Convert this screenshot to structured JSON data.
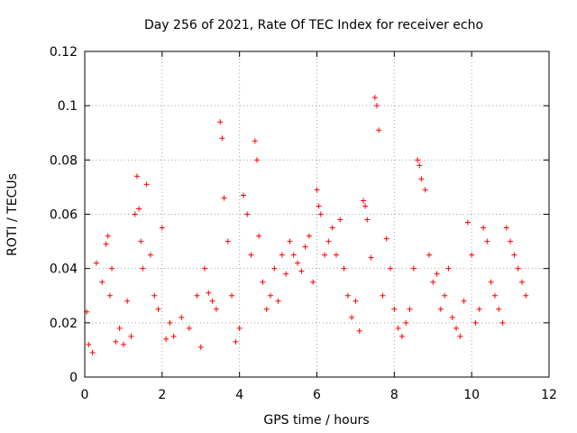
{
  "chart_data": {
    "type": "scatter",
    "title": "Day 256 of 2021, Rate Of TEC Index for receiver echo",
    "xlabel": "GPS time / hours",
    "ylabel": "ROTI / TECUs",
    "xlim": [
      0,
      12
    ],
    "ylim": [
      0,
      0.12
    ],
    "grid": true,
    "marker": "+",
    "x_ticks": [
      0,
      2,
      4,
      6,
      8,
      10,
      12
    ],
    "x_tick_labels": [
      "0",
      "2",
      "4",
      "6",
      "8",
      "10",
      "12"
    ],
    "y_ticks": [
      0,
      0.02,
      0.04,
      0.06,
      0.08,
      0.1,
      0.12
    ],
    "y_tick_labels": [
      "0",
      "0.02",
      "0.04",
      "0.06",
      "0.08",
      "0.1",
      "0.12"
    ],
    "series": [
      {
        "name": "ROTI",
        "color": "#ff0000",
        "x": [
          0.05,
          0.1,
          0.2,
          0.3,
          0.45,
          0.55,
          0.6,
          0.65,
          0.7,
          0.8,
          0.9,
          1.0,
          1.1,
          1.2,
          1.3,
          1.35,
          1.4,
          1.45,
          1.5,
          1.6,
          1.7,
          1.8,
          1.9,
          2.0,
          2.1,
          2.2,
          2.3,
          2.5,
          2.7,
          2.9,
          3.0,
          3.1,
          3.2,
          3.3,
          3.4,
          3.5,
          3.55,
          3.6,
          3.7,
          3.8,
          3.9,
          4.0,
          4.1,
          4.2,
          4.3,
          4.4,
          4.45,
          4.5,
          4.6,
          4.7,
          4.8,
          4.9,
          5.0,
          5.1,
          5.2,
          5.3,
          5.4,
          5.5,
          5.6,
          5.7,
          5.8,
          5.9,
          6.0,
          6.05,
          6.1,
          6.2,
          6.3,
          6.4,
          6.5,
          6.6,
          6.7,
          6.8,
          6.9,
          7.0,
          7.1,
          7.2,
          7.25,
          7.3,
          7.4,
          7.5,
          7.55,
          7.6,
          7.7,
          7.8,
          7.9,
          8.0,
          8.1,
          8.2,
          8.3,
          8.4,
          8.5,
          8.6,
          8.65,
          8.7,
          8.8,
          8.9,
          9.0,
          9.1,
          9.2,
          9.3,
          9.4,
          9.5,
          9.6,
          9.7,
          9.8,
          9.9,
          10.0,
          10.1,
          10.2,
          10.3,
          10.4,
          10.5,
          10.6,
          10.7,
          10.8,
          10.9,
          11.0,
          11.1,
          11.2,
          11.3,
          11.4
        ],
        "y": [
          0.024,
          0.012,
          0.009,
          0.042,
          0.035,
          0.049,
          0.052,
          0.03,
          0.04,
          0.013,
          0.018,
          0.012,
          0.028,
          0.015,
          0.06,
          0.074,
          0.062,
          0.05,
          0.04,
          0.071,
          0.045,
          0.03,
          0.025,
          0.055,
          0.014,
          0.02,
          0.015,
          0.022,
          0.018,
          0.03,
          0.011,
          0.04,
          0.031,
          0.028,
          0.025,
          0.094,
          0.088,
          0.066,
          0.05,
          0.03,
          0.013,
          0.018,
          0.067,
          0.06,
          0.045,
          0.087,
          0.08,
          0.052,
          0.035,
          0.025,
          0.03,
          0.04,
          0.028,
          0.045,
          0.038,
          0.05,
          0.045,
          0.042,
          0.039,
          0.048,
          0.052,
          0.035,
          0.069,
          0.063,
          0.06,
          0.045,
          0.05,
          0.055,
          0.045,
          0.058,
          0.04,
          0.03,
          0.022,
          0.028,
          0.017,
          0.065,
          0.063,
          0.058,
          0.044,
          0.103,
          0.1,
          0.091,
          0.03,
          0.051,
          0.04,
          0.025,
          0.018,
          0.015,
          0.02,
          0.025,
          0.04,
          0.08,
          0.078,
          0.073,
          0.069,
          0.045,
          0.035,
          0.038,
          0.025,
          0.03,
          0.04,
          0.022,
          0.018,
          0.015,
          0.028,
          0.057,
          0.045,
          0.02,
          0.025,
          0.055,
          0.05,
          0.035,
          0.03,
          0.025,
          0.02,
          0.055,
          0.05,
          0.045,
          0.04,
          0.035,
          0.03
        ]
      }
    ]
  }
}
